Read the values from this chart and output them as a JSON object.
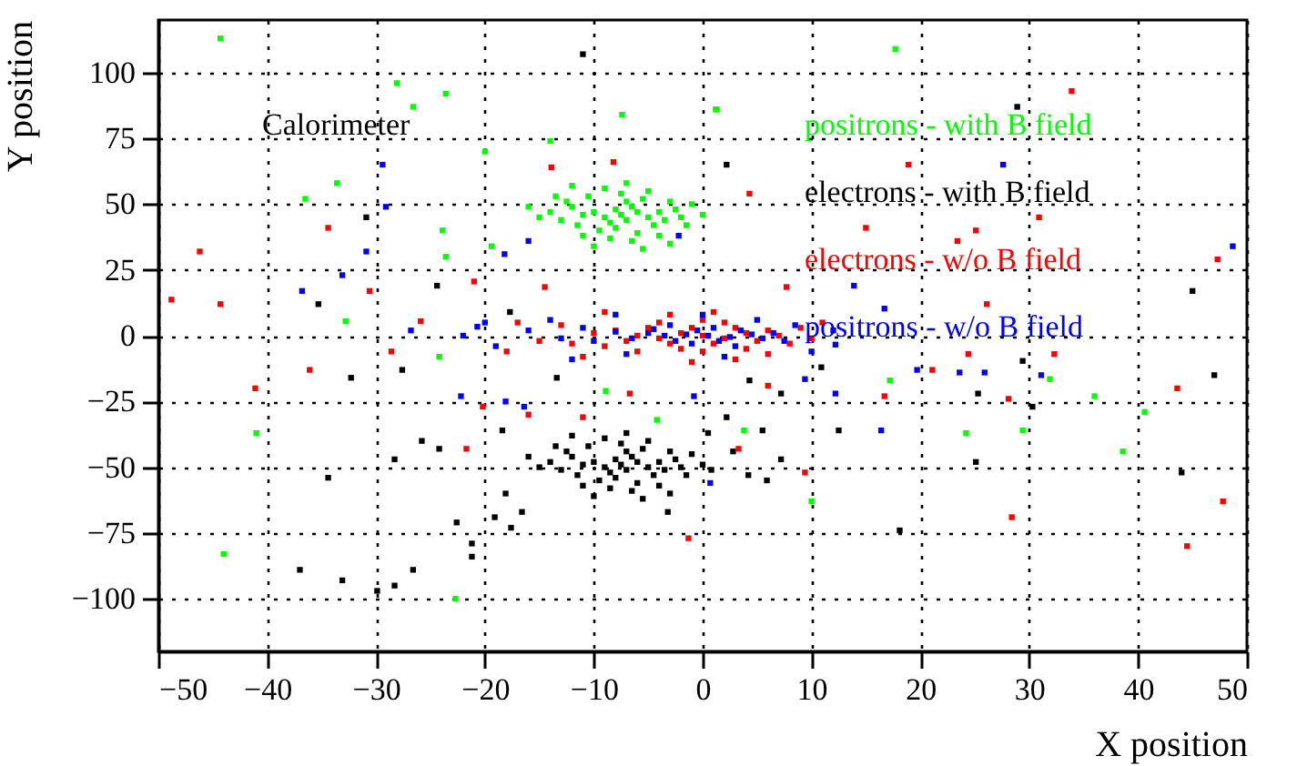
{
  "chart_data": {
    "type": "scatter",
    "xlabel": "X position",
    "ylabel": "Y position",
    "annotations": [
      "Calorimeter"
    ],
    "xlim": [
      -50,
      50
    ],
    "xticks": [
      -50,
      -40,
      -30,
      -20,
      -10,
      0,
      10,
      20,
      30,
      40,
      50
    ],
    "ylim": [
      -120,
      120
    ],
    "yticks": [
      -100,
      -75,
      -50,
      -25,
      0,
      25,
      50,
      75,
      100
    ],
    "grid": true,
    "marker": "square",
    "series": [
      {
        "name": "positrons - with B field",
        "color": "#00ff00",
        "x": [
          -7.5,
          -6,
          -9,
          -8,
          -5,
          -10,
          -7,
          -6.5,
          -8.5,
          -4,
          -11,
          -7,
          -8,
          -3.5,
          -12,
          -5.5,
          -9.5,
          -2.5,
          -13,
          -6,
          -10.5,
          -4.5,
          -11.5,
          -7.5,
          -3,
          -12.5,
          -8.5,
          -2,
          -14,
          -5,
          -9,
          -6.5,
          -1.5,
          -15,
          -4,
          -11,
          -13.5,
          -1,
          -7,
          -10,
          -16,
          0,
          -3,
          -5.5,
          -12,
          -44.3,
          -28.1,
          -26.6,
          -23.6,
          -14,
          -7.4,
          -33.6,
          -36.5,
          -23.9,
          -23.6,
          -32.8,
          -19.4,
          -20,
          1.2,
          17.7,
          1.3,
          -24.2,
          -8.9,
          -41,
          -44,
          -22.7,
          -4.2,
          17.2,
          3.8,
          10,
          24.2,
          29.4,
          31.9,
          36,
          38.6,
          40.6
        ],
        "values": [
          46,
          47,
          45,
          48,
          45,
          47,
          44,
          49,
          43,
          47,
          46,
          51,
          41,
          44,
          49,
          52,
          40,
          48,
          44,
          39,
          53,
          42,
          42,
          54,
          51,
          51,
          37,
          45,
          47,
          55,
          56,
          36,
          42,
          45,
          38,
          38,
          53,
          50,
          58,
          34,
          49,
          46,
          35,
          33,
          57,
          113,
          96,
          87,
          92,
          74,
          84,
          58,
          52,
          40,
          30,
          5.5,
          34,
          70,
          86,
          109,
          86,
          -8,
          -21,
          -37,
          -83,
          -100,
          -32,
          -17,
          -36,
          -63,
          -37,
          -36,
          -16.5,
          -23,
          -44,
          -29
        ]
      },
      {
        "name": "electrons - with B field",
        "color": "#000000",
        "x": [
          -7.5,
          -6,
          -9,
          -8,
          -5,
          -10,
          -7,
          -6.5,
          -8.5,
          -4,
          -11,
          -7,
          -8,
          -3.5,
          -12,
          -5.5,
          -9.5,
          -2.5,
          -13,
          -6,
          -10.5,
          -4.5,
          -11.5,
          -7.5,
          -3,
          -12.5,
          -8.5,
          -2,
          -14,
          -5,
          -9,
          -6.5,
          -1.5,
          -15,
          -4,
          -11,
          -13.5,
          -1,
          -7,
          -10,
          -16,
          0,
          -3,
          -5.5,
          -12,
          -32.3,
          -27.6,
          -25.8,
          -24.2,
          -34.4,
          -28.3,
          -37,
          -33.1,
          -29.9,
          -28.3,
          -26.6,
          -21.2,
          -21.2,
          -22.6,
          -19.1,
          -17.6,
          -18.1,
          -16.6,
          -18.4,
          -13.4,
          -3.2,
          0.8,
          0.5,
          -11,
          -30.9,
          -24.4,
          -35.3,
          -17.7,
          2.2,
          28.9,
          45,
          4.3,
          7.2,
          2.2,
          5.5,
          2.8,
          4.2,
          5.9,
          7.2,
          12.5,
          18.1,
          25.3,
          25.1,
          29.4,
          30.3,
          47,
          44,
          10.9
        ],
        "values": [
          -49,
          -48,
          -50,
          -47,
          -50,
          -48,
          -51,
          -46,
          -52,
          -48,
          -49,
          -44,
          -54,
          -51,
          -46,
          -43,
          -55,
          -47,
          -51,
          -56,
          -42,
          -53,
          -53,
          -41,
          -44,
          -44,
          -58,
          -50,
          -48,
          -40,
          -39,
          -59,
          -53,
          -50,
          -57,
          -57,
          -42,
          -45,
          -37,
          -61,
          -46,
          -49,
          -60,
          -62,
          -38,
          -16,
          -13,
          -40,
          -43,
          -54,
          -47,
          -89,
          -93,
          -97,
          -95,
          -89,
          -79,
          -84,
          -71,
          -69,
          -73,
          -60,
          -67,
          -36,
          -16,
          -67,
          -51,
          -37,
          107,
          45,
          19,
          12,
          9,
          65,
          87,
          17,
          -17,
          -22,
          -31,
          -36,
          -44,
          -53,
          -55,
          -47,
          -36,
          -74,
          -22,
          -48,
          -9.6,
          -27,
          -15,
          -52,
          -12
        ]
      },
      {
        "name": "electrons - w/o B field",
        "color": "#ff0000",
        "x": [
          0,
          -2,
          2,
          -4,
          4,
          -1,
          1,
          -3,
          3,
          -6,
          5,
          -5,
          6,
          -2,
          2,
          -7,
          7,
          -8,
          8,
          -4,
          4,
          0,
          0,
          -9,
          9,
          -10,
          10,
          -12,
          -13,
          -6,
          6,
          -3,
          3,
          -15,
          -11,
          11,
          -9,
          1,
          -1,
          -17,
          -18,
          -46.2,
          -44.3,
          -34.4,
          -13.9,
          -8.2,
          -25.9,
          -30.6,
          -14.5,
          -21,
          -48.8,
          -41.1,
          -36.1,
          -28.6,
          -21.7,
          -20.2,
          -16,
          -11,
          -6.7,
          -1.3,
          9.4,
          3.3,
          6,
          16.7,
          21.1,
          24.4,
          28.1,
          28.4,
          32.3,
          43.6,
          47.8,
          44.5,
          33.9,
          18.9,
          15,
          23.4,
          25.1,
          30.9,
          4.3,
          7.7,
          26.1,
          47.3
        ],
        "values": [
          0,
          1,
          -1,
          -1,
          1,
          3,
          -3,
          -3,
          3,
          0,
          -2,
          3,
          2,
          -5,
          5,
          -2,
          0,
          2,
          -3,
          5,
          -5,
          6,
          -6,
          -4,
          3,
          1,
          -1,
          -3,
          4,
          -6,
          -7,
          8,
          -9,
          -2,
          -8,
          5,
          9,
          9,
          -10,
          5,
          -6,
          32,
          12,
          41,
          64,
          66,
          5.5,
          17,
          18.5,
          20.6,
          13.7,
          -20,
          -13,
          -6,
          -43,
          -27,
          -30,
          -31,
          -22,
          -77,
          -52,
          -43,
          -19,
          -23,
          -13,
          -7,
          -24,
          -69,
          -7,
          -20,
          -63,
          -80,
          93,
          65,
          41,
          36,
          40,
          45,
          54,
          18.5,
          12,
          29
        ]
      },
      {
        "name": "positrons - w/o B field",
        "color": "#0000ff",
        "x": [
          0.5,
          -1.5,
          2.5,
          -3.5,
          4.5,
          -0.5,
          1.5,
          -2.5,
          3.5,
          -5,
          5.5,
          -4.5,
          -1,
          1,
          -6.5,
          6.5,
          -8,
          7.5,
          -3,
          3,
          -10,
          -11,
          8.5,
          -13,
          -14,
          -7,
          5,
          -16,
          -19,
          -20,
          10,
          -8,
          2,
          0,
          -12,
          -22,
          12,
          -29.4,
          -29.1,
          -30.9,
          -36.8,
          -33.1,
          -16,
          -18.2,
          -20.7,
          -26.8,
          -2.2,
          27.6,
          48.7,
          13.9,
          12.2,
          16.7,
          -18.1,
          -16.4,
          -22.2,
          -0.8,
          0.7,
          12.2,
          16.4,
          23.6,
          25.9,
          31.1,
          19.7,
          9.4
        ],
        "values": [
          0,
          0.5,
          -0.5,
          0,
          0.5,
          2,
          -2,
          -2,
          2,
          1,
          -1,
          2.5,
          -3,
          3,
          -1,
          1,
          1.5,
          -2,
          4,
          -4,
          -2,
          3,
          4,
          -1,
          6,
          -7,
          6,
          2,
          -4,
          5,
          -6,
          8,
          -8,
          8,
          -9,
          0,
          2,
          65,
          49,
          32,
          17,
          23,
          36,
          31,
          3.4,
          2,
          38,
          65,
          34,
          19,
          -3.4,
          10.3,
          -25,
          -27,
          -23,
          -23,
          -56,
          -22,
          -36,
          -14,
          -14,
          -15,
          -13,
          -16.5
        ]
      }
    ]
  }
}
